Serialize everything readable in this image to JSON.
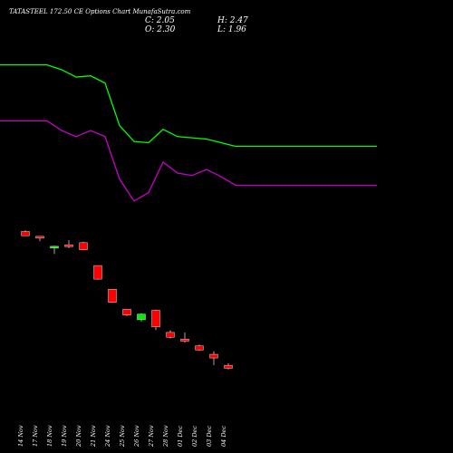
{
  "header": {
    "title": "TATASTEEL 172.50 CE Options Chart MunafaSutra.com",
    "close_label": "C: 2.05",
    "open_label": "O: 2.30",
    "high_label": "H: 2.47",
    "low_label": "L: 1.96"
  },
  "chart_data": {
    "type": "candlestick",
    "title": "TATASTEEL 172.50 CE Options Chart MunafaSutra.com",
    "categories": [
      "14 Nov",
      "17 Nov",
      "18 Nov",
      "19 Nov",
      "20 Nov",
      "21 Nov",
      "24 Nov",
      "25 Nov",
      "26 Nov",
      "27 Nov",
      "28 Nov",
      "01 Dec",
      "02 Dec",
      "03 Dec",
      "04 Dec"
    ],
    "ohlc": [
      {
        "o": 13.3,
        "h": 13.4,
        "l": 12.95,
        "c": 12.95
      },
      {
        "o": 12.9,
        "h": 12.9,
        "l": 12.5,
        "c": 12.75
      },
      {
        "o": 11.98,
        "h": 12.13,
        "l": 11.45,
        "c": 12.08
      },
      {
        "o": 12.2,
        "h": 12.58,
        "l": 11.93,
        "c": 12.13
      },
      {
        "o": 12.38,
        "h": 12.44,
        "l": 11.76,
        "c": 11.8
      },
      {
        "o": 10.5,
        "h": 10.5,
        "l": 9.33,
        "c": 9.38
      },
      {
        "o": 8.55,
        "h": 8.55,
        "l": 7.42,
        "c": 7.47
      },
      {
        "o": 6.9,
        "h": 6.9,
        "l": 6.33,
        "c": 6.43
      },
      {
        "o": 6.04,
        "h": 6.58,
        "l": 5.88,
        "c": 6.5
      },
      {
        "o": 6.82,
        "h": 6.88,
        "l": 5.2,
        "c": 5.45
      },
      {
        "o": 5.0,
        "h": 5.18,
        "l": 4.5,
        "c": 4.6
      },
      {
        "o": 4.45,
        "h": 5.0,
        "l": 4.15,
        "c": 4.28
      },
      {
        "o": 3.9,
        "h": 4.0,
        "l": 3.48,
        "c": 3.55
      },
      {
        "o": 3.2,
        "h": 3.45,
        "l": 2.3,
        "c": 2.9
      },
      {
        "o": 2.3,
        "h": 2.47,
        "l": 1.96,
        "c": 2.05
      }
    ],
    "series": [
      {
        "color": "#00ff00",
        "values": [
          27.0,
          27.0,
          26.6,
          26.0,
          26.1,
          25.5,
          22.0,
          20.7,
          20.6,
          21.7,
          21.1,
          21.0,
          20.9,
          20.6,
          20.3
        ]
      },
      {
        "color": "#cc00cc",
        "values": [
          22.4,
          22.4,
          21.6,
          21.1,
          21.6,
          21.1,
          17.6,
          15.8,
          16.5,
          19.0,
          18.1,
          17.9,
          18.4,
          17.8,
          17.1
        ]
      }
    ],
    "ylim": [
      0,
      32
    ],
    "colors": {
      "up": "#00ee00",
      "down": "#ff0000",
      "background": "#000000",
      "text": "#ffffff"
    }
  }
}
